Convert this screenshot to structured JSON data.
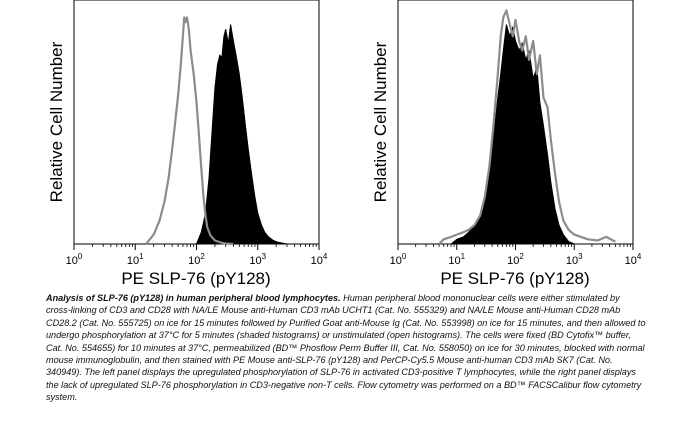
{
  "chart_data": [
    {
      "type": "area",
      "panel": "left",
      "ylabel": "Relative Cell Number",
      "xlabel": "PE SLP-76 (pY128)",
      "xscale": "log",
      "xlim": [
        1,
        10000
      ],
      "xticks": [
        {
          "value": 1,
          "base": "10",
          "exp": "0"
        },
        {
          "value": 10,
          "base": "10",
          "exp": "1"
        },
        {
          "value": 100,
          "base": "10",
          "exp": "2"
        },
        {
          "value": 1000,
          "base": "10",
          "exp": "3"
        },
        {
          "value": 10000,
          "base": "10",
          "exp": "4"
        }
      ],
      "ylim": [
        0,
        1
      ],
      "series": [
        {
          "style": "filled-black",
          "x": [
            100,
            120,
            140,
            160,
            180,
            200,
            220,
            240,
            260,
            280,
            300,
            330,
            360,
            400,
            450,
            500,
            560,
            630,
            700,
            800,
            900,
            1000,
            1150,
            1300,
            1500,
            1800,
            2100,
            2600,
            3000
          ],
          "values": [
            0.0,
            0.05,
            0.13,
            0.28,
            0.48,
            0.66,
            0.76,
            0.8,
            0.79,
            0.88,
            0.91,
            0.85,
            0.93,
            0.86,
            0.79,
            0.72,
            0.62,
            0.5,
            0.4,
            0.29,
            0.2,
            0.13,
            0.08,
            0.05,
            0.03,
            0.015,
            0.008,
            0.003,
            0.0
          ]
        },
        {
          "style": "open-gray",
          "x": [
            15,
            20,
            25,
            30,
            35,
            40,
            45,
            50,
            55,
            60,
            63,
            66,
            70,
            75,
            80,
            90,
            100,
            110,
            120,
            130,
            140,
            150,
            170,
            200,
            250,
            300,
            400
          ],
          "values": [
            0.0,
            0.04,
            0.1,
            0.18,
            0.28,
            0.4,
            0.52,
            0.63,
            0.75,
            0.88,
            0.96,
            0.94,
            0.96,
            0.91,
            0.82,
            0.72,
            0.6,
            0.46,
            0.32,
            0.2,
            0.12,
            0.07,
            0.035,
            0.015,
            0.006,
            0.002,
            0.0
          ]
        }
      ]
    },
    {
      "type": "area",
      "panel": "right",
      "ylabel": "Relative Cell Number",
      "xlabel": "PE SLP-76 (pY128)",
      "xscale": "log",
      "xlim": [
        1,
        10000
      ],
      "xticks": [
        {
          "value": 1,
          "base": "10",
          "exp": "0"
        },
        {
          "value": 10,
          "base": "10",
          "exp": "1"
        },
        {
          "value": 100,
          "base": "10",
          "exp": "2"
        },
        {
          "value": 1000,
          "base": "10",
          "exp": "3"
        },
        {
          "value": 10000,
          "base": "10",
          "exp": "4"
        }
      ],
      "ylim": [
        0,
        1
      ],
      "series": [
        {
          "style": "filled-black",
          "x": [
            8,
            10,
            13,
            16,
            20,
            25,
            30,
            36,
            42,
            50,
            56,
            62,
            70,
            80,
            90,
            100,
            115,
            130,
            150,
            170,
            200,
            230,
            260,
            300,
            350,
            400,
            470,
            550,
            650,
            800,
            1000
          ],
          "values": [
            0.0,
            0.02,
            0.03,
            0.05,
            0.08,
            0.12,
            0.2,
            0.3,
            0.45,
            0.62,
            0.72,
            0.82,
            0.93,
            0.88,
            0.92,
            0.86,
            0.82,
            0.85,
            0.78,
            0.82,
            0.7,
            0.75,
            0.6,
            0.5,
            0.38,
            0.26,
            0.15,
            0.08,
            0.04,
            0.01,
            0.0
          ]
        },
        {
          "style": "open-gray",
          "x": [
            5,
            6,
            8,
            10,
            13,
            16,
            20,
            25,
            30,
            36,
            42,
            50,
            56,
            62,
            70,
            80,
            90,
            100,
            115,
            130,
            150,
            170,
            200,
            230,
            260,
            300,
            350,
            400,
            470,
            550,
            650,
            800,
            1000,
            1300,
            1700,
            2500,
            3500,
            5000
          ],
          "values": [
            0.0,
            0.02,
            0.03,
            0.04,
            0.05,
            0.06,
            0.08,
            0.12,
            0.2,
            0.33,
            0.5,
            0.72,
            0.88,
            0.96,
            0.99,
            0.93,
            0.88,
            0.95,
            0.86,
            0.82,
            0.88,
            0.78,
            0.86,
            0.72,
            0.8,
            0.62,
            0.58,
            0.44,
            0.3,
            0.18,
            0.1,
            0.06,
            0.04,
            0.03,
            0.02,
            0.015,
            0.03,
            0.01
          ]
        }
      ]
    }
  ],
  "caption": {
    "title": "Analysis of SLP-76 (pY128) in human peripheral blood lymphocytes.",
    "body": "Human peripheral blood mononuclear cells were either stimulated by cross-linking of CD3 and CD28 with NA/LE Mouse anti-Human CD3 mAb UCHT1 (Cat. No. 555329) and NA/LE Mouse anti-Human CD28 mAb CD28.2 (Cat. No. 555725) on ice for 15 minutes followed by Purified Goat anti-Mouse Ig (Cat. No. 553998) on ice for 15 minutes, and then allowed to undergo phosphorylation at 37°C for 5 minutes (shaded histograms) or unstimulated (open histograms). The cells were fixed (BD Cytofix™ buffer, Cat. No. 554655) for 10 minutes at 37°C, permeabilized (BD™ Phosflow Perm Buffer III, Cat. No. 558050) on ice for 30 minutes, blocked with normal mouse immunoglobulin, and then stained with PE Mouse anti-SLP-76 (pY128) and PerCP-Cy5.5 Mouse anti-human CD3 mAb SK7 (Cat. No. 340949). The left panel displays the upregulated phosphorylation of SLP-76 in activated CD3-positive T lymphocytes, while the right panel displays the lack of upregulated SLP-76 phosphorylation in CD3-negative non-T cells. Flow cytometry was performed on a BD™ FACSCalibur flow cytometry system."
  },
  "colors": {
    "filled": "#000000",
    "open_line": "#8c8c8c",
    "axis": "#000000"
  }
}
